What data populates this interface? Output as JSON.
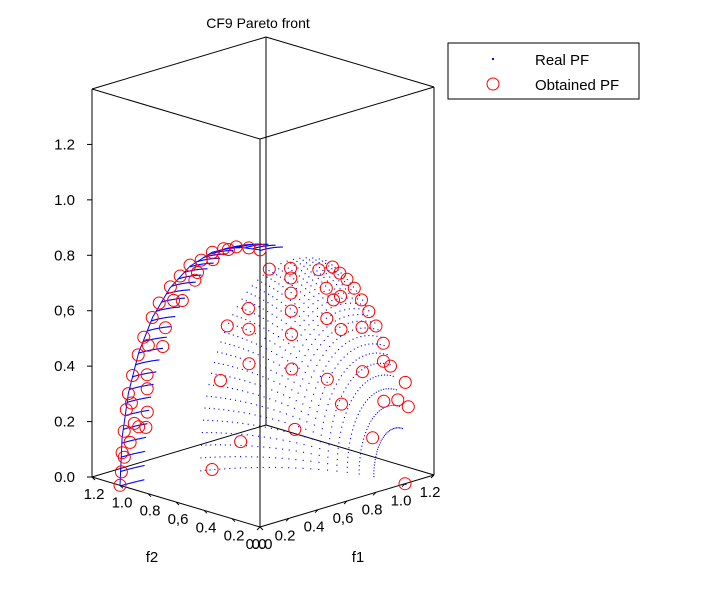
{
  "chart_data": {
    "type": "scatter",
    "title": "CF9 Pareto front",
    "xlabel": "f1",
    "ylabel": "f2",
    "zlabel": "",
    "xlim": [
      0,
      1.2
    ],
    "ylim": [
      0,
      1.2
    ],
    "zlim": [
      0,
      1.4
    ],
    "x_ticks": [
      "0.0",
      "0.2",
      "0.4",
      "0,6",
      "0.8",
      "1.0",
      "1.2"
    ],
    "y_ticks": [
      "1.2",
      "1.0",
      "0.8",
      "0,6",
      "0.4",
      "0.2",
      "0.0"
    ],
    "z_ticks": [
      "0.0",
      "0.2",
      "0.4",
      "0,6",
      "0.8",
      "1.0",
      "1.2"
    ],
    "legend": {
      "position": "top-right",
      "entries": [
        "Real PF",
        "Obtained PF"
      ]
    },
    "colors": {
      "real": "#0000ff",
      "obtained": "#ff0000"
    },
    "real_pf": {
      "name": "Real PF",
      "curve": [
        [
          0.0,
          1.0,
          0.0
        ],
        [
          0.0,
          0.985,
          0.174
        ],
        [
          0.0,
          0.94,
          0.342
        ],
        [
          0.0,
          0.866,
          0.5
        ],
        [
          0.0,
          0.766,
          0.643
        ],
        [
          0.0,
          0.643,
          0.766
        ],
        [
          0.0,
          0.5,
          0.866
        ],
        [
          0.0,
          0.342,
          0.94
        ],
        [
          0.0,
          0.174,
          0.985
        ],
        [
          0.0,
          0.0,
          1.0
        ]
      ],
      "region_a_f1_range": [
        0.0,
        0.15
      ],
      "region_b_f1_range": [
        0.45,
        1.0
      ]
    },
    "obtained_pf": {
      "name": "Obtained PF",
      "points": [
        [
          0.0,
          1.0,
          0.0
        ],
        [
          0.0,
          0.99,
          0.05
        ],
        [
          0.0,
          0.985,
          0.12
        ],
        [
          0.0,
          0.97,
          0.2
        ],
        [
          0.0,
          0.955,
          0.28
        ],
        [
          0.0,
          0.94,
          0.34
        ],
        [
          0.0,
          0.91,
          0.41
        ],
        [
          0.0,
          0.87,
          0.49
        ],
        [
          0.0,
          0.83,
          0.56
        ],
        [
          0.0,
          0.77,
          0.64
        ],
        [
          0.0,
          0.72,
          0.7
        ],
        [
          0.0,
          0.64,
          0.77
        ],
        [
          0.0,
          0.57,
          0.82
        ],
        [
          0.0,
          0.5,
          0.87
        ],
        [
          0.0,
          0.42,
          0.9
        ],
        [
          0.0,
          0.34,
          0.94
        ],
        [
          0.0,
          0.26,
          0.965
        ],
        [
          0.0,
          0.17,
          0.985
        ],
        [
          0.0,
          0.08,
          0.995
        ],
        [
          0.0,
          0.0,
          1.0
        ],
        [
          0.02,
          0.99,
          0.1
        ],
        [
          0.03,
          0.95,
          0.3
        ],
        [
          0.05,
          0.85,
          0.52
        ],
        [
          0.08,
          0.7,
          0.7
        ],
        [
          0.1,
          0.55,
          0.82
        ],
        [
          0.12,
          0.35,
          0.93
        ],
        [
          0.05,
          0.98,
          0.15
        ],
        [
          0.1,
          0.97,
          0.2
        ],
        [
          0.14,
          0.95,
          0.25
        ],
        [
          0.06,
          0.96,
          0.22
        ],
        [
          0.09,
          0.9,
          0.4
        ],
        [
          0.12,
          0.8,
          0.58
        ],
        [
          0.15,
          0.85,
          0.5
        ],
        [
          0.14,
          0.7,
          0.69
        ],
        [
          0.13,
          0.6,
          0.78
        ],
        [
          0.11,
          0.45,
          0.88
        ],
        [
          0.15,
          0.97,
          0.19
        ],
        [
          0.12,
          0.93,
          0.34
        ],
        [
          0.5,
          0.0,
          0.86
        ],
        [
          0.55,
          0.0,
          0.83
        ],
        [
          0.6,
          0.0,
          0.8
        ],
        [
          0.65,
          0.0,
          0.76
        ],
        [
          0.7,
          0.0,
          0.71
        ],
        [
          0.75,
          0.0,
          0.66
        ],
        [
          0.8,
          0.0,
          0.6
        ],
        [
          0.85,
          0.0,
          0.53
        ],
        [
          0.9,
          0.0,
          0.44
        ],
        [
          0.95,
          0.0,
          0.31
        ],
        [
          1.0,
          0.0,
          0.0
        ],
        [
          0.5,
          0.3,
          0.81
        ],
        [
          0.55,
          0.35,
          0.76
        ],
        [
          0.6,
          0.4,
          0.69
        ],
        [
          0.65,
          0.45,
          0.61
        ],
        [
          0.7,
          0.5,
          0.51
        ],
        [
          0.75,
          0.55,
          0.37
        ],
        [
          0.8,
          0.58,
          0.14
        ],
        [
          0.5,
          0.6,
          0.62
        ],
        [
          0.55,
          0.65,
          0.53
        ],
        [
          0.6,
          0.7,
          0.39
        ],
        [
          0.6,
          0.76,
          0.1
        ],
        [
          0.5,
          0.8,
          0.33
        ],
        [
          0.5,
          0.86,
          0.0
        ],
        [
          0.7,
          0.2,
          0.68
        ],
        [
          0.8,
          0.25,
          0.55
        ],
        [
          0.9,
          0.2,
          0.39
        ],
        [
          0.95,
          0.1,
          0.29
        ],
        [
          0.85,
          0.4,
          0.34
        ],
        [
          0.75,
          0.3,
          0.59
        ],
        [
          0.65,
          0.2,
          0.73
        ],
        [
          0.55,
          0.15,
          0.82
        ],
        [
          0.9,
          0.35,
          0.25
        ],
        [
          0.97,
          0.2,
          0.14
        ],
        [
          0.45,
          0.4,
          0.8
        ],
        [
          0.45,
          0.7,
          0.55
        ],
        [
          1.05,
          0.05,
          0.35
        ],
        [
          1.1,
          0.08,
          0.25
        ],
        [
          0.9,
          0.05,
          0.45
        ],
        [
          0.8,
          0.1,
          0.58
        ],
        [
          0.7,
          0.15,
          0.7
        ]
      ]
    }
  }
}
